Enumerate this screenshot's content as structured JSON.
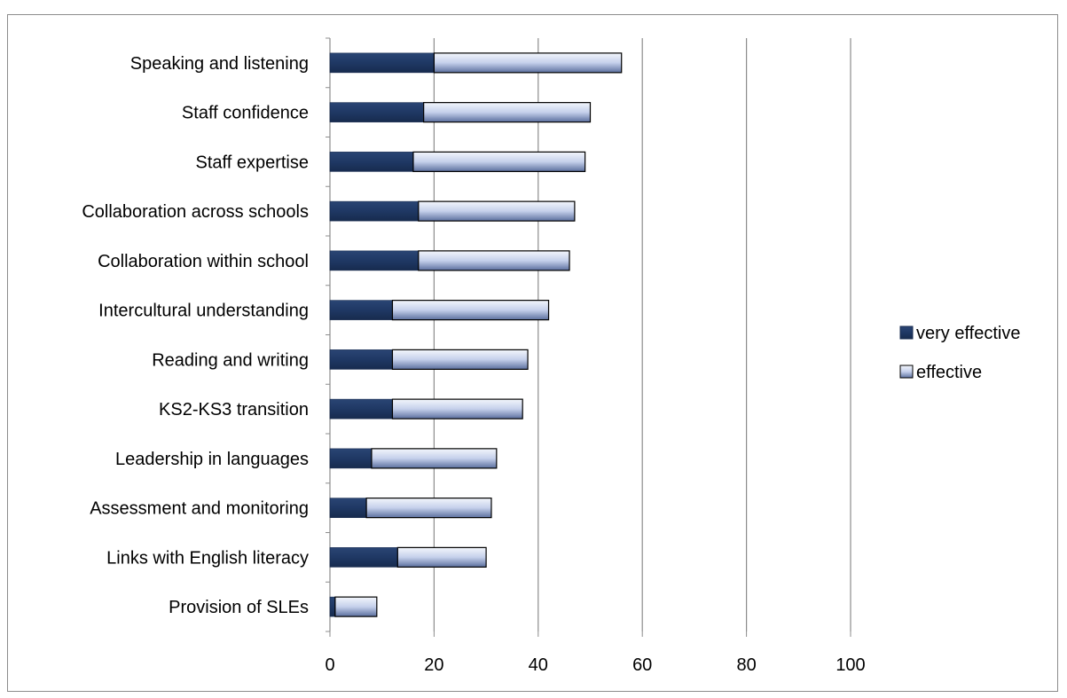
{
  "chart_data": {
    "type": "bar",
    "orientation": "horizontal",
    "stacked": true,
    "categories": [
      "Speaking and listening",
      "Staff confidence",
      "Staff expertise",
      "Collaboration across schools",
      "Collaboration within school",
      "Intercultural understanding",
      "Reading and writing",
      "KS2-KS3 transition",
      "Leadership in languages",
      "Assessment and monitoring",
      "Links with English literacy",
      "Provision of SLEs"
    ],
    "series": [
      {
        "name": "very effective",
        "color": "#1f3864",
        "values": [
          20,
          18,
          16,
          17,
          17,
          12,
          12,
          12,
          8,
          7,
          13,
          1
        ]
      },
      {
        "name": "effective",
        "color": "#c5d0eb",
        "values": [
          36,
          32,
          33,
          30,
          29,
          30,
          26,
          25,
          24,
          24,
          17,
          8
        ]
      }
    ],
    "xlim": [
      0,
      100
    ],
    "xticks": [
      "0",
      "20",
      "40",
      "60",
      "80",
      "100"
    ],
    "xlabel": "",
    "ylabel": "",
    "title": "",
    "grid": "vertical major gridlines",
    "legend_position": "right"
  }
}
